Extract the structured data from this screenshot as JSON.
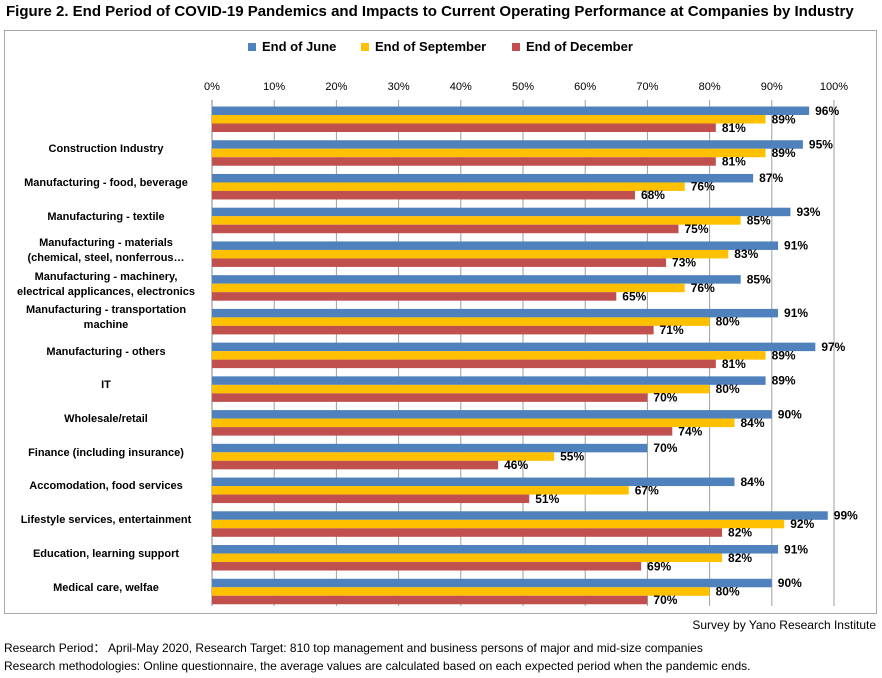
{
  "title": "Figure 2. End Period of COVID-19 Pandemics and Impacts to Current Operating Performance at Companies by Industry",
  "colors": {
    "june": "#4f81bd",
    "september": "#ffc000",
    "december": "#c0504d",
    "grid": "#9e9e9e"
  },
  "chart_data": {
    "type": "bar",
    "orientation": "horizontal",
    "title": "",
    "xlim": [
      0,
      100
    ],
    "x_ticks": [
      "0%",
      "10%",
      "20%",
      "30%",
      "40%",
      "50%",
      "60%",
      "70%",
      "80%",
      "90%",
      "100%"
    ],
    "x_tick_values": [
      0,
      10,
      20,
      30,
      40,
      50,
      60,
      70,
      80,
      90,
      100
    ],
    "grid": "vertical",
    "legend_position": "top",
    "categories": [
      "",
      "Construction Industry",
      "Manufacturing - food, beverage",
      "Manufacturing - textile",
      "Manufacturing - materials\n(chemical, steel, nonferrous…",
      "Manufacturing - machinery,\nelectrical applicances, electronics",
      "Manufacturing - transportation\nmachine",
      "Manufacturing - others",
      "IT",
      "Wholesale/retail",
      "Finance (including insurance)",
      "Accomodation, food services",
      "Lifestyle services, entertainment",
      "Education, learning support",
      "Medical care, welfae"
    ],
    "series": [
      {
        "name": "End of June",
        "color": "#4f81bd",
        "values": [
          96,
          95,
          87,
          93,
          91,
          85,
          91,
          97,
          89,
          90,
          70,
          84,
          99,
          91,
          90
        ],
        "labels": [
          "96%",
          "95%",
          "87%",
          "93%",
          "91%",
          "85%",
          "91%",
          "97%",
          "89%",
          "90%",
          "70%",
          "84%",
          "99%",
          "91%",
          "90%"
        ]
      },
      {
        "name": "End of September",
        "color": "#ffc000",
        "values": [
          89,
          89,
          76,
          85,
          83,
          76,
          80,
          89,
          80,
          84,
          55,
          67,
          92,
          82,
          80
        ],
        "labels": [
          "89%",
          "89%",
          "76%",
          "85%",
          "83%",
          "76%",
          "80%",
          "89%",
          "80%",
          "84%",
          "55%",
          "67%",
          "92%",
          "82%",
          "80%"
        ]
      },
      {
        "name": "End of December",
        "color": "#c0504d",
        "values": [
          81,
          81,
          68,
          75,
          73,
          65,
          71,
          81,
          70,
          74,
          46,
          51,
          82,
          69,
          70
        ],
        "labels": [
          "81%",
          "81%",
          "68%",
          "75%",
          "73%",
          "65%",
          "71%",
          "81%",
          "70%",
          "74%",
          "46%",
          "51%",
          "82%",
          "69%",
          "70%"
        ]
      }
    ]
  },
  "footer": {
    "source": "Survey by Yano Research Institute",
    "line1": "Research Period： April-May 2020, Research Target: 810 top management and business persons of major and mid-size companies",
    "line2": "Research methodologies: Online questionnaire, the average values are calculated based on each expected period when the pandemic ends."
  }
}
